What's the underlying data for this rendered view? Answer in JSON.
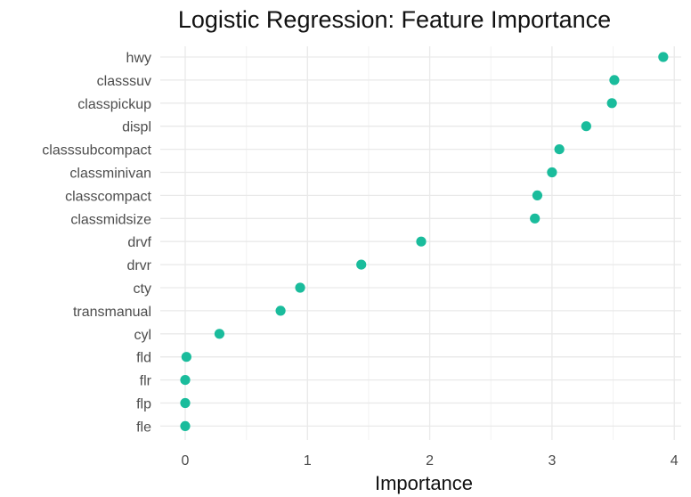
{
  "chart_data": {
    "type": "scatter",
    "title": "Logistic Regression: Feature Importance",
    "xlabel": "Importance",
    "ylabel": "",
    "xlim": [
      -0.1,
      4.0
    ],
    "x_ticks": [
      0,
      1,
      2,
      3,
      4
    ],
    "grid": true,
    "legend": "none",
    "point_color": "#1abc9c",
    "categories": [
      "hwy",
      "classsuv",
      "classpickup",
      "displ",
      "classsubcompact",
      "classminivan",
      "classcompact",
      "classmidsize",
      "drvf",
      "drvr",
      "cty",
      "transmanual",
      "cyl",
      "fld",
      "flr",
      "flp",
      "fle"
    ],
    "values": [
      3.91,
      3.51,
      3.49,
      3.28,
      3.06,
      3.0,
      2.88,
      2.86,
      1.93,
      1.44,
      0.94,
      0.78,
      0.28,
      0.01,
      0.0,
      0.0,
      0.0
    ]
  }
}
